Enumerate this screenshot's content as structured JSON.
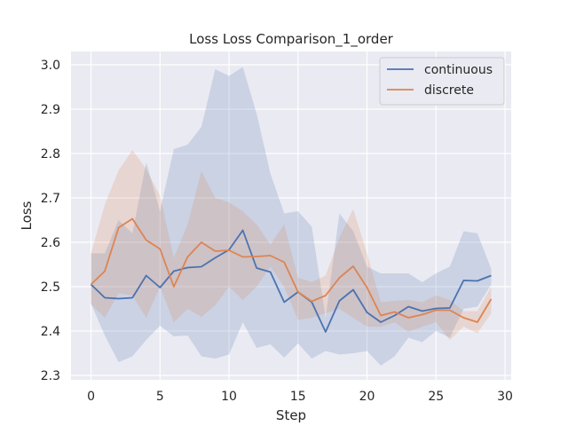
{
  "chart_data": {
    "type": "line",
    "title": "Loss Loss Comparison_1_order",
    "xlabel": "Step",
    "ylabel": "Loss",
    "xlim": [
      -1.45,
      30.45
    ],
    "ylim": [
      2.29,
      3.03
    ],
    "xticks": [
      0,
      5,
      10,
      15,
      20,
      25,
      30
    ],
    "yticks": [
      2.3,
      2.4,
      2.5,
      2.6,
      2.7,
      2.8,
      2.9,
      3.0
    ],
    "grid": true,
    "legend": "top-right",
    "series": [
      {
        "name": "continuous",
        "color": "#4c72b0",
        "x": [
          0,
          1,
          2,
          3,
          4,
          5,
          6,
          7,
          8,
          9,
          10,
          11,
          12,
          13,
          14,
          15,
          16,
          17,
          18,
          19,
          20,
          21,
          22,
          23,
          24,
          25,
          26,
          27,
          28,
          29
        ],
        "values": [
          2.505,
          2.475,
          2.473,
          2.475,
          2.525,
          2.498,
          2.535,
          2.543,
          2.545,
          2.565,
          2.583,
          2.627,
          2.542,
          2.533,
          2.465,
          2.488,
          2.465,
          2.398,
          2.468,
          2.493,
          2.442,
          2.42,
          2.435,
          2.455,
          2.445,
          2.451,
          2.452,
          2.514,
          2.513,
          2.525
        ],
        "upper": [
          2.575,
          2.575,
          2.65,
          2.62,
          2.78,
          2.67,
          2.81,
          2.82,
          2.86,
          2.99,
          2.975,
          2.995,
          2.89,
          2.755,
          2.665,
          2.67,
          2.635,
          2.43,
          2.665,
          2.625,
          2.545,
          2.53,
          2.53,
          2.53,
          2.51,
          2.53,
          2.545,
          2.625,
          2.62,
          2.54
        ],
        "lower": [
          2.462,
          2.39,
          2.33,
          2.343,
          2.38,
          2.412,
          2.388,
          2.39,
          2.343,
          2.338,
          2.347,
          2.42,
          2.362,
          2.37,
          2.34,
          2.372,
          2.338,
          2.355,
          2.347,
          2.35,
          2.355,
          2.322,
          2.343,
          2.385,
          2.375,
          2.4,
          2.385,
          2.45,
          2.455,
          2.505
        ]
      },
      {
        "name": "discrete",
        "color": "#dd8452",
        "x": [
          0,
          1,
          2,
          3,
          4,
          5,
          6,
          7,
          8,
          9,
          10,
          11,
          12,
          13,
          14,
          15,
          16,
          17,
          18,
          19,
          20,
          21,
          22,
          23,
          24,
          25,
          26,
          27,
          28,
          29
        ],
        "values": [
          2.505,
          2.535,
          2.633,
          2.653,
          2.605,
          2.585,
          2.5,
          2.567,
          2.6,
          2.58,
          2.582,
          2.567,
          2.568,
          2.57,
          2.555,
          2.488,
          2.467,
          2.48,
          2.52,
          2.546,
          2.498,
          2.435,
          2.443,
          2.43,
          2.437,
          2.447,
          2.447,
          2.43,
          2.42,
          2.472
        ],
        "upper": [
          2.575,
          2.685,
          2.762,
          2.808,
          2.765,
          2.705,
          2.565,
          2.64,
          2.76,
          2.7,
          2.69,
          2.67,
          2.64,
          2.595,
          2.64,
          2.52,
          2.51,
          2.525,
          2.61,
          2.675,
          2.575,
          2.465,
          2.468,
          2.47,
          2.465,
          2.48,
          2.47,
          2.445,
          2.445,
          2.5
        ],
        "lower": [
          2.46,
          2.43,
          2.485,
          2.48,
          2.43,
          2.5,
          2.42,
          2.45,
          2.432,
          2.458,
          2.5,
          2.47,
          2.5,
          2.545,
          2.5,
          2.425,
          2.43,
          2.44,
          2.45,
          2.43,
          2.41,
          2.41,
          2.42,
          2.398,
          2.41,
          2.42,
          2.38,
          2.41,
          2.395,
          2.44
        ]
      }
    ]
  }
}
